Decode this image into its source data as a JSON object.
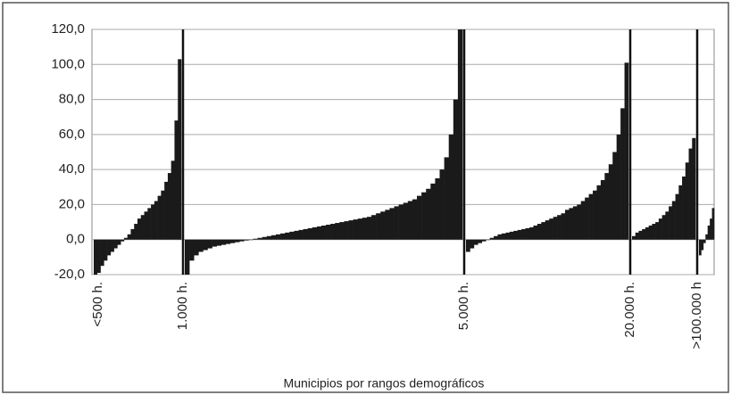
{
  "chart_data": {
    "type": "sorted-bar-groups",
    "x_label": "Municipios por rangos demográficos",
    "group_labels": [
      "<500 h.",
      "1.000 h.",
      "5.000 h.",
      "20.000 h.",
      ">100.000 h"
    ],
    "color": "#1a1a1a",
    "grid": true,
    "ylim": [
      -20,
      120
    ],
    "yticks": [
      {
        "value": -20,
        "label": "-20,0"
      },
      {
        "value": 0,
        "label": "0,0"
      },
      {
        "value": 20,
        "label": "20,0"
      },
      {
        "value": 40,
        "label": "40,0"
      },
      {
        "value": 60,
        "label": "60,0"
      },
      {
        "value": 80,
        "label": "80,0"
      },
      {
        "value": 100,
        "label": "100,0"
      },
      {
        "value": 120,
        "label": "120,0"
      }
    ],
    "groups": [
      {
        "values": [
          -20,
          -19,
          -15,
          -12,
          -9,
          -7,
          -5,
          -3,
          -1,
          1,
          3,
          6,
          9,
          12,
          14,
          16,
          18,
          20,
          22,
          25,
          28,
          33,
          38,
          45,
          68,
          103
        ]
      },
      {
        "values": [
          -20,
          -12,
          -9,
          -7,
          -6,
          -5,
          -4,
          -3.5,
          -3,
          -2.5,
          -2,
          -1.5,
          -1,
          -0.5,
          0,
          0.5,
          1,
          1.5,
          2,
          2.5,
          3,
          3.5,
          4,
          4.5,
          5,
          5.5,
          6,
          6.5,
          7,
          7.5,
          8,
          8.5,
          9,
          9.5,
          10,
          10.5,
          11,
          11.5,
          12,
          12.5,
          13,
          14,
          15,
          16,
          17,
          18,
          19,
          20,
          21,
          22,
          23,
          25,
          27,
          29,
          32,
          35,
          40,
          47,
          60,
          80,
          120
        ]
      },
      {
        "values": [
          -7,
          -5,
          -3,
          -2,
          -1,
          0,
          1,
          2,
          3,
          3.5,
          4,
          4.5,
          5,
          5.5,
          6,
          6.5,
          7,
          8,
          9,
          10,
          11,
          12,
          13,
          14,
          15,
          17,
          18,
          19,
          20,
          22,
          24,
          26,
          28,
          31,
          34,
          38,
          43,
          50,
          60,
          75,
          101
        ]
      },
      {
        "values": [
          2,
          4,
          5,
          6,
          7,
          8,
          9,
          10,
          12,
          14,
          16,
          19,
          22,
          26,
          31,
          36,
          44,
          52,
          58
        ]
      },
      {
        "values": [
          -9,
          -6,
          -2,
          3,
          8,
          12,
          18
        ]
      }
    ]
  }
}
